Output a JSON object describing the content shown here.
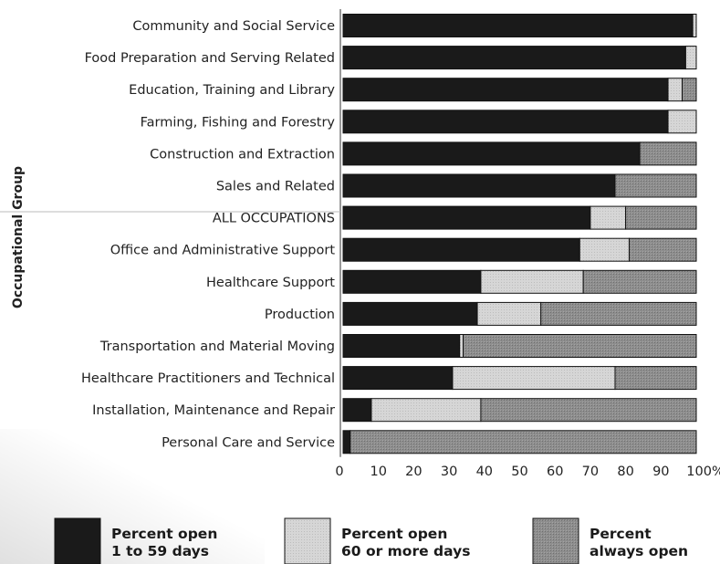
{
  "chart_data": {
    "type": "bar",
    "orientation": "horizontal",
    "stacked": true,
    "ylabel": "Occupational Group",
    "xlabel": "",
    "xlim": [
      0,
      100
    ],
    "xticks": [
      "0",
      "10",
      "20",
      "30",
      "40",
      "50",
      "60",
      "70",
      "80",
      "90",
      "100%"
    ],
    "grid": false,
    "legend_position": "bottom",
    "categories": [
      "Community and Social Service",
      "Food Preparation and Serving Related",
      "Education, Training and Library",
      "Farming, Fishing and Forestry",
      "Construction and Extraction",
      "Sales and Related",
      "ALL OCCUPATIONS",
      "Office and Administrative Support",
      "Healthcare Support",
      "Production",
      "Transportation and Material Moving",
      "Healthcare Practitioners and Technical",
      "Installation, Maintenance and Repair",
      "Personal Care and Service"
    ],
    "series": [
      {
        "name": "Percent open 1 to 59 days",
        "legend_lines": [
          "Percent open",
          "1 to 59 days"
        ],
        "color": "#1a1a1a",
        "values": [
          99,
          97,
          92,
          92,
          84,
          77,
          70,
          67,
          39,
          38,
          33,
          31,
          8,
          2
        ]
      },
      {
        "name": "Percent open 60 or more days",
        "legend_lines": [
          "Percent open",
          "60 or more days"
        ],
        "color": "#d2d2d2",
        "values": [
          1,
          3,
          4,
          8,
          0,
          0,
          10,
          14,
          29,
          18,
          1,
          46,
          31,
          0
        ]
      },
      {
        "name": "Percent always open",
        "legend_lines": [
          "Percent",
          "always open"
        ],
        "color": "#8a8a8a",
        "values": [
          0,
          0,
          4,
          0,
          16,
          23,
          20,
          19,
          32,
          44,
          66,
          23,
          61,
          98
        ]
      }
    ]
  }
}
